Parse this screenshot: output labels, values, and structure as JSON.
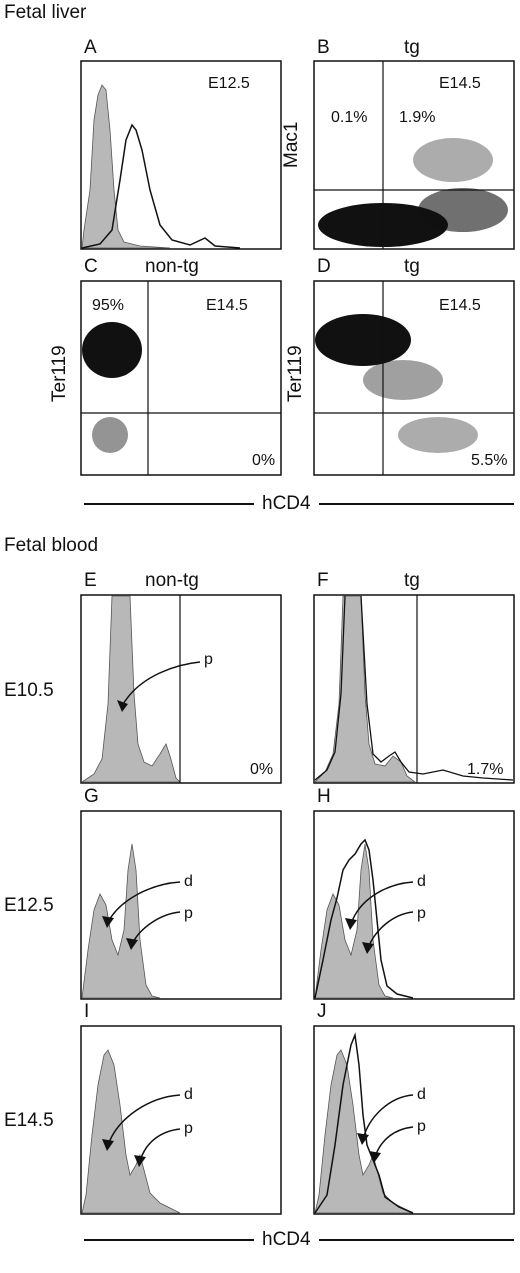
{
  "sections": {
    "liver": "Fetal liver",
    "blood": "Fetal blood"
  },
  "axis_label": "hCD4",
  "panels": {
    "A": {
      "letter": "A",
      "condition": "",
      "stage": "E12.5",
      "ylabel": ""
    },
    "B": {
      "letter": "B",
      "condition": "tg",
      "stage": "E14.5",
      "ylabel": "Mac1",
      "q_ul": "0.1%",
      "q_ur": "1.9%"
    },
    "C": {
      "letter": "C",
      "condition": "non-tg",
      "stage": "E14.5",
      "ylabel": "Ter119",
      "q_ul": "95%",
      "q_lr": "0%"
    },
    "D": {
      "letter": "D",
      "condition": "tg",
      "stage": "E14.5",
      "ylabel": "Ter119",
      "q_lr": "5.5%"
    },
    "E": {
      "letter": "E",
      "condition": "non-tg",
      "gate": "0%",
      "arrow_p": "p"
    },
    "F": {
      "letter": "F",
      "condition": "tg",
      "gate": "1.7%"
    },
    "G": {
      "letter": "G",
      "arrow_d": "d",
      "arrow_p": "p"
    },
    "H": {
      "letter": "H",
      "arrow_d": "d",
      "arrow_p": "p"
    },
    "I": {
      "letter": "I",
      "arrow_d": "d",
      "arrow_p": "p"
    },
    "J": {
      "letter": "J",
      "arrow_d": "d",
      "arrow_p": "p"
    }
  },
  "row_labels": {
    "r1": "E10.5",
    "r2": "E12.5",
    "r3": "E14.5"
  },
  "colors": {
    "fill": "#b8b8b8",
    "line": "#111111"
  }
}
